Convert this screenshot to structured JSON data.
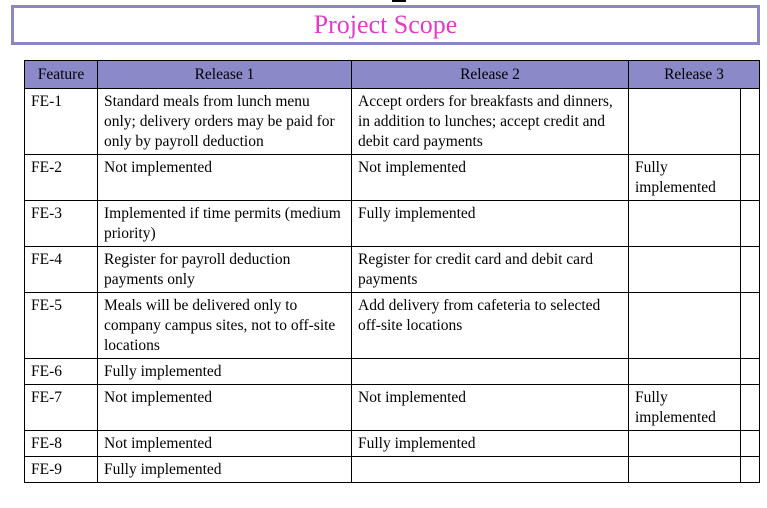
{
  "title": "Project Scope",
  "table": {
    "headers": [
      "Feature",
      "Release 1",
      "Release 2",
      "Release 3"
    ],
    "rows": [
      {
        "feature": "FE-1",
        "release1": "Standard meals from lunch menu only; delivery orders may be paid for only by payroll deduction",
        "release2": "Accept orders for breakfasts and dinners, in addition to lunches; accept credit and debit card payments",
        "release3": ""
      },
      {
        "feature": "FE-2",
        "release1": "Not implemented",
        "release2": "Not implemented",
        "release3": "Fully implemented"
      },
      {
        "feature": "FE-3",
        "release1": "Implemented if time permits (medium priority)",
        "release2": "Fully implemented",
        "release3": ""
      },
      {
        "feature": "FE-4",
        "release1": "Register for payroll deduction payments only",
        "release2": "Register for credit card and debit card payments",
        "release3": ""
      },
      {
        "feature": "FE-5",
        "release1": "Meals will be delivered only to company campus sites, not to off-site locations",
        "release2": "Add delivery from cafeteria to selected off-site locations",
        "release3": ""
      },
      {
        "feature": "FE-6",
        "release1": "Fully implemented",
        "release2": "",
        "release3": ""
      },
      {
        "feature": "FE-7",
        "release1": "Not implemented",
        "release2": "Not implemented",
        "release3": "Fully implemented"
      },
      {
        "feature": "FE-8",
        "release1": "Not implemented",
        "release2": "Fully implemented",
        "release3": ""
      },
      {
        "feature": "FE-9",
        "release1": "Fully implemented",
        "release2": "",
        "release3": ""
      }
    ]
  },
  "colors": {
    "title_text": "#e23cc7",
    "title_border": "#8a86c8",
    "header_bg": "#8c89c9"
  }
}
